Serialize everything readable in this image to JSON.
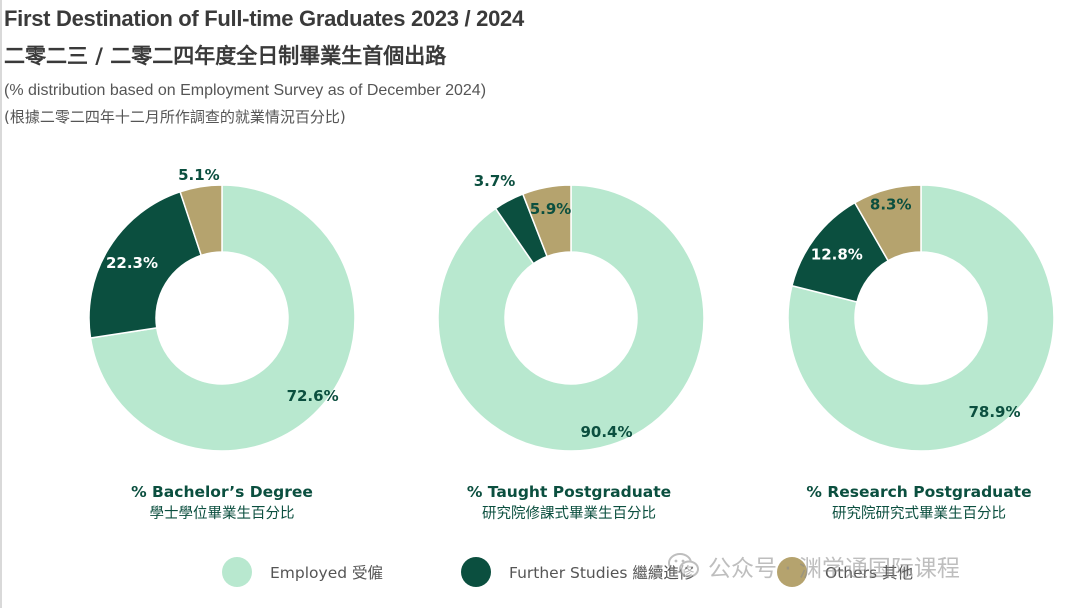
{
  "header": {
    "title_en": "First Destination of Full-time Graduates 2023 / 2024",
    "title_zh": "二零二三 / 二零二四年度全日制畢業生首個出路",
    "subtitle_en": "(% distribution based on Employment Survey as of December 2024)",
    "subtitle_zh": "(根據二零二四年十二月所作調查的就業情況百分比)"
  },
  "colors": {
    "employed": "#b8e8cf",
    "further_studies": "#0b4f3f",
    "others": "#b5a36e"
  },
  "chart_data": [
    {
      "type": "pie",
      "donut": true,
      "title_en": "% Bachelor’s Degree",
      "title_zh": "學士學位畢業生百分比",
      "categories": [
        "Employed",
        "Further Studies",
        "Others"
      ],
      "values": [
        72.6,
        22.3,
        5.1
      ],
      "labels": [
        "72.6%",
        "22.3%",
        "5.1%"
      ]
    },
    {
      "type": "pie",
      "donut": true,
      "title_en": "% Taught Postgraduate",
      "title_zh": "研究院修課式畢業生百分比",
      "categories": [
        "Employed",
        "Further Studies",
        "Others"
      ],
      "values": [
        90.4,
        3.7,
        5.9
      ],
      "labels": [
        "90.4%",
        "3.7%",
        "5.9%"
      ]
    },
    {
      "type": "pie",
      "donut": true,
      "title_en": "% Research Postgraduate",
      "title_zh": "研究院研究式畢業生百分比",
      "categories": [
        "Employed",
        "Further Studies",
        "Others"
      ],
      "values": [
        78.9,
        12.8,
        8.3
      ],
      "labels": [
        "78.9%",
        "12.8%",
        "8.3%"
      ]
    }
  ],
  "legend": {
    "placement": "bottom",
    "items": [
      {
        "label": "Employed 受僱",
        "color": "#b8e8cf"
      },
      {
        "label": "Further Studies 繼續進修",
        "color": "#0b4f3f"
      },
      {
        "label": "Others 其他",
        "color": "#b5a36e"
      }
    ]
  },
  "watermark": {
    "text": "公众号 · 渊学通国际课程",
    "icon": "wechat-icon"
  }
}
